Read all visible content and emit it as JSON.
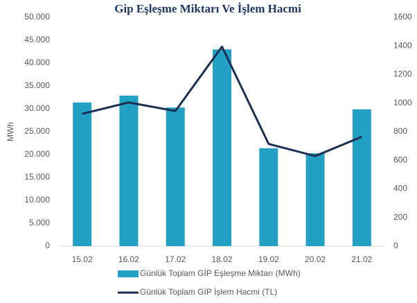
{
  "chart_data": {
    "type": "bar-line",
    "title": "Gip Eşleşme Miktarı Ve İşlem Hacmi",
    "y_label": "MWh",
    "categories": [
      "15.02",
      "16.02",
      "17.02",
      "18.02",
      "19.02",
      "20.02",
      "21.02"
    ],
    "series": [
      {
        "name": "Günlük Toplam GİP Eşleşme Miktarı (MWh)",
        "type": "bar",
        "color": "#23a1c4",
        "axis": "y",
        "values": [
          31400,
          32900,
          30300,
          43000,
          21400,
          20300,
          29900
        ]
      },
      {
        "name": "Günlük Toplam GİP İşlem Hacmi (TL)",
        "type": "line",
        "color": "#1b2f52",
        "axis": "y2",
        "values": [
          925,
          1005,
          945,
          1395,
          715,
          630,
          765
        ]
      }
    ],
    "ylim": [
      0,
      50000
    ],
    "yticks": [
      0,
      {
        "value": 5000,
        "label": "5.000"
      },
      {
        "value": 10000,
        "label": "10.000"
      },
      {
        "value": 15000,
        "label": "15.000"
      },
      {
        "value": 20000,
        "label": "20.000"
      },
      {
        "value": 25000,
        "label": "25.000"
      },
      {
        "value": 30000,
        "label": "30.000"
      },
      {
        "value": 35000,
        "label": "35.000"
      },
      {
        "value": 40000,
        "label": "40.000"
      },
      {
        "value": 45000,
        "label": "45.000"
      },
      {
        "value": 50000,
        "label": "50.000"
      }
    ],
    "y2lim": [
      0,
      1600
    ],
    "y2ticks": [
      0,
      200,
      400,
      600,
      800,
      1000,
      1200,
      1400,
      1600
    ],
    "grid": false
  }
}
